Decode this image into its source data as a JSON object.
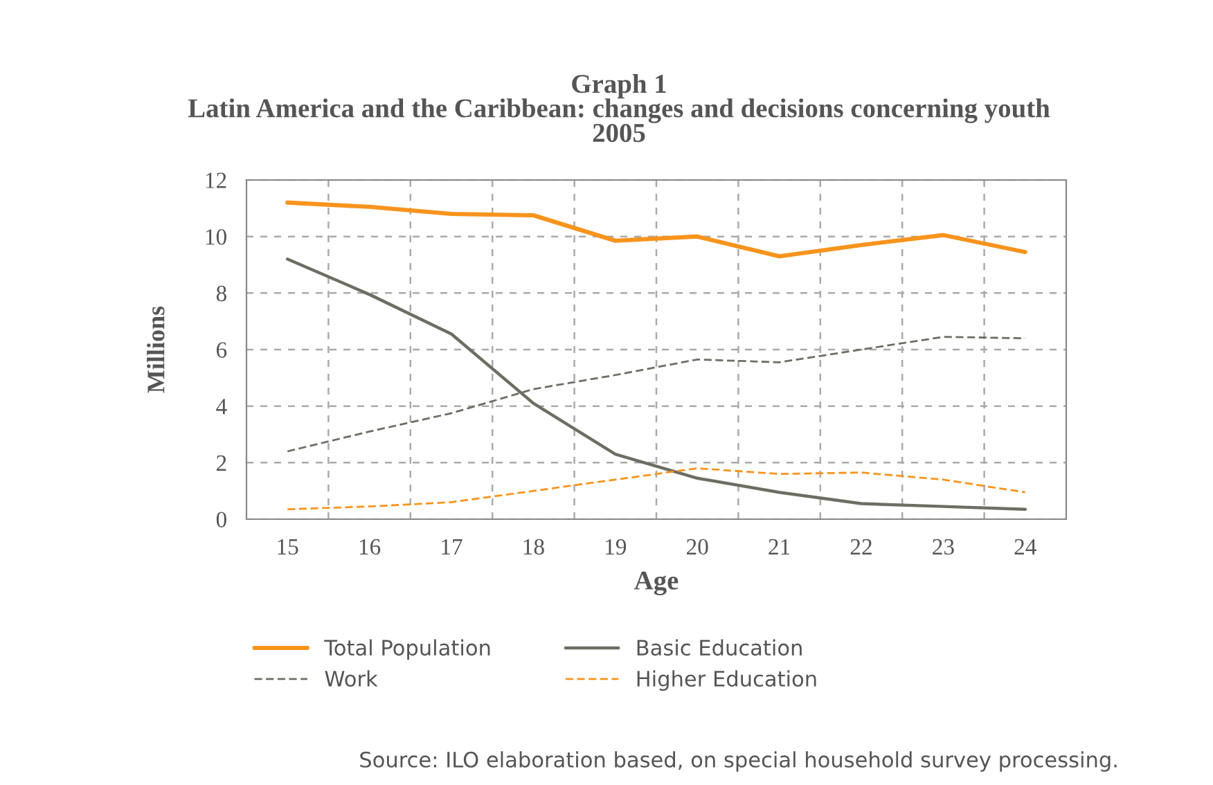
{
  "chart_data": {
    "type": "line",
    "title": "Graph 1\nLatin America and the Caribbean: changes and decisions concerning youth\n2005",
    "xlabel": "Age",
    "ylabel": "Millions",
    "categories": [
      "15",
      "16",
      "17",
      "18",
      "19",
      "20",
      "21",
      "22",
      "23",
      "24"
    ],
    "series": [
      {
        "name": "Total Population",
        "color": "#f7941d",
        "line_style": "solid",
        "values": [
          11.2,
          11.05,
          10.8,
          10.75,
          9.85,
          10.0,
          9.3,
          9.7,
          10.05,
          9.45
        ]
      },
      {
        "name": "Basic Education",
        "color": "#6d6e63",
        "line_style": "solid",
        "values": [
          9.2,
          7.95,
          6.55,
          4.1,
          2.3,
          1.45,
          0.95,
          0.55,
          0.45,
          0.35
        ]
      },
      {
        "name": "Work",
        "color": "#6d6e63",
        "line_style": "dashed",
        "values": [
          2.4,
          3.1,
          3.75,
          4.6,
          5.1,
          5.65,
          5.55,
          6.0,
          6.45,
          6.4
        ]
      },
      {
        "name": "Higher Education",
        "color": "#f7941d",
        "line_style": "dashed",
        "values": [
          0.35,
          0.45,
          0.6,
          1.0,
          1.4,
          1.8,
          1.6,
          1.65,
          1.4,
          0.95
        ]
      }
    ],
    "ylim": [
      0,
      12
    ],
    "yticks": [
      0,
      2,
      4,
      6,
      8,
      10,
      12
    ],
    "grid": true,
    "legend": "bottom",
    "marker": "none",
    "annotations": [
      "Source: ILO elaboration based, on special household survey processing."
    ]
  }
}
